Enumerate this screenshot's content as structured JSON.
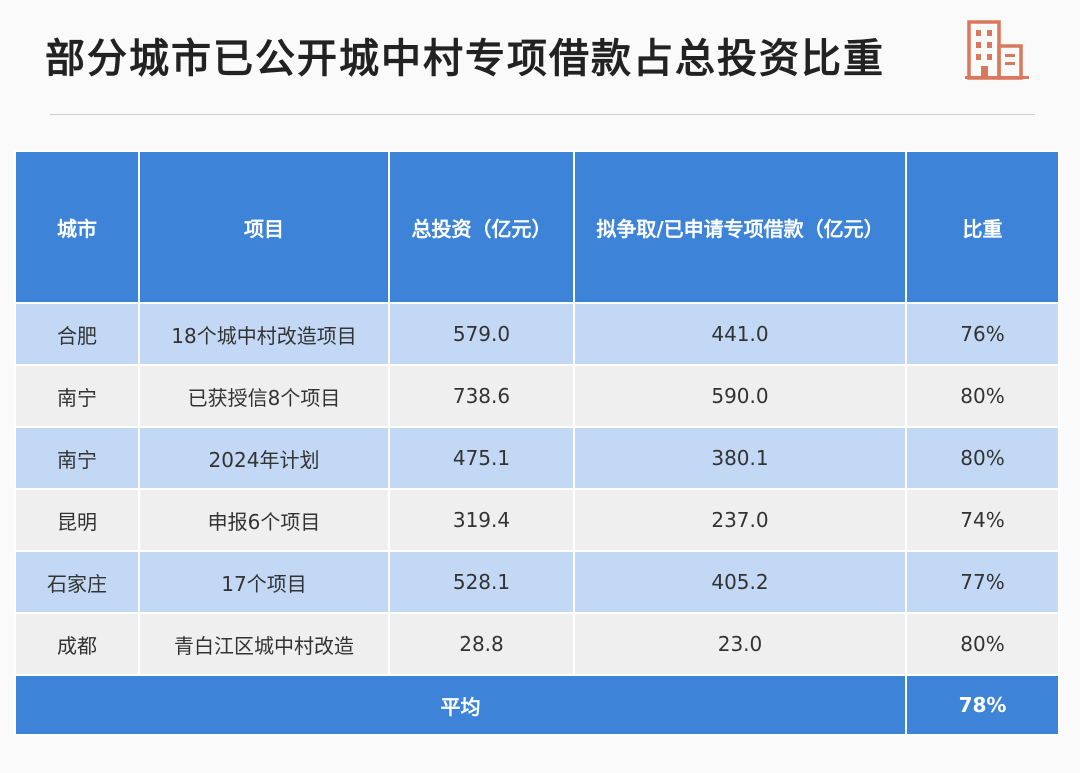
{
  "title": "部分城市已公开城中村专项借款占总投资比重",
  "logo_icon": "building-icon",
  "colors": {
    "header": "#3d84d8",
    "row_blue": "#c2d8f4",
    "row_grey": "#efefef",
    "logo": "#d9785a"
  },
  "chart_data": {
    "type": "table",
    "columns": [
      "城市",
      "项目",
      "总投资（亿元）",
      "拟争取/已申请专项借款（亿元）",
      "比重"
    ],
    "rows": [
      [
        "合肥",
        "18个城中村改造项目",
        "579.0",
        "441.0",
        "76%"
      ],
      [
        "南宁",
        "已获授信8个项目",
        "738.6",
        "590.0",
        "80%"
      ],
      [
        "南宁",
        "2024年计划",
        "475.1",
        "380.1",
        "80%"
      ],
      [
        "昆明",
        "申报6个项目",
        "319.4",
        "237.0",
        "74%"
      ],
      [
        "石家庄",
        "17个项目",
        "528.1",
        "405.2",
        "77%"
      ],
      [
        "成都",
        "青白江区城中村改造",
        "28.8",
        "23.0",
        "80%"
      ]
    ],
    "footer": {
      "label": "平均",
      "value": "78%"
    }
  }
}
